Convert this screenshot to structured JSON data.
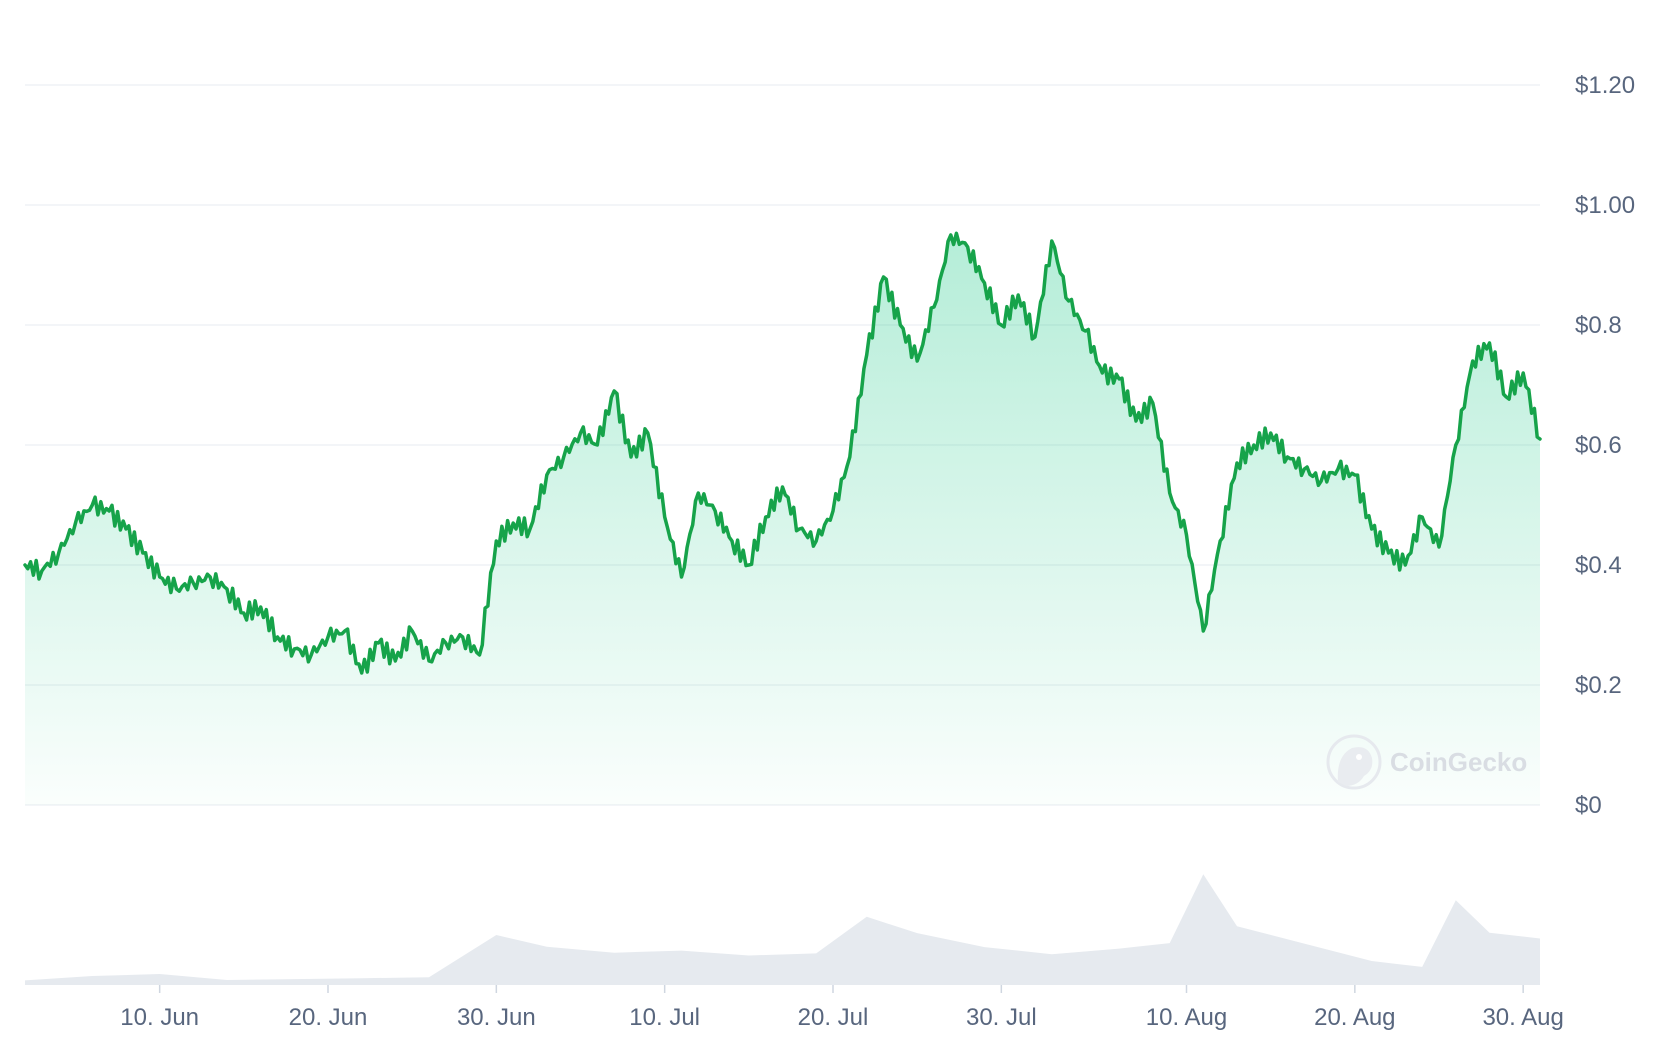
{
  "watermark": {
    "brand": "CoinGecko",
    "icon": "gecko-logo-icon"
  },
  "colors": {
    "line": "#16a34a",
    "area_top": "#16c784",
    "grid": "#eff2f5",
    "volume": "#e6eaef",
    "tick_text": "#58667e"
  },
  "chart_data": {
    "type": "area",
    "title": "",
    "xlabel": "",
    "ylabel": "",
    "y_ticks": [
      "$0",
      "$0.2",
      "$0.4",
      "$0.6",
      "$0.8",
      "$1.00",
      "$1.20"
    ],
    "y_tick_values": [
      0,
      0.2,
      0.4,
      0.6,
      0.8,
      1.0,
      1.2
    ],
    "ylim": [
      0,
      1.2
    ],
    "x_ticks": [
      "10. Jun",
      "20. Jun",
      "30. Jun",
      "10. Jul",
      "20. Jul",
      "30. Jul",
      "10. Aug",
      "20. Aug",
      "30. Aug"
    ],
    "x_tick_dates": [
      "2024-06-10",
      "2024-06-20",
      "2024-06-30",
      "2024-07-10",
      "2024-07-20",
      "2024-07-30",
      "2024-08-10",
      "2024-08-20",
      "2024-08-30"
    ],
    "xlim": [
      "2024-06-02",
      "2024-08-31"
    ],
    "grid": true,
    "legend": "none",
    "series": [
      {
        "values_by_date": [
          [
            "2024-06-02",
            0.4
          ],
          [
            "2024-06-03",
            0.39
          ],
          [
            "2024-06-04",
            0.42
          ],
          [
            "2024-06-05",
            0.47
          ],
          [
            "2024-06-06",
            0.5
          ],
          [
            "2024-06-07",
            0.49
          ],
          [
            "2024-06-08",
            0.46
          ],
          [
            "2024-06-09",
            0.42
          ],
          [
            "2024-06-10",
            0.38
          ],
          [
            "2024-06-11",
            0.36
          ],
          [
            "2024-06-12",
            0.37
          ],
          [
            "2024-06-13",
            0.38
          ],
          [
            "2024-06-14",
            0.36
          ],
          [
            "2024-06-15",
            0.32
          ],
          [
            "2024-06-16",
            0.33
          ],
          [
            "2024-06-17",
            0.28
          ],
          [
            "2024-06-18",
            0.26
          ],
          [
            "2024-06-19",
            0.25
          ],
          [
            "2024-06-20",
            0.28
          ],
          [
            "2024-06-21",
            0.29
          ],
          [
            "2024-06-22",
            0.22
          ],
          [
            "2024-06-23",
            0.27
          ],
          [
            "2024-06-24",
            0.24
          ],
          [
            "2024-06-25",
            0.29
          ],
          [
            "2024-06-26",
            0.24
          ],
          [
            "2024-06-27",
            0.27
          ],
          [
            "2024-06-28",
            0.28
          ],
          [
            "2024-06-29",
            0.25
          ],
          [
            "2024-06-30",
            0.44
          ],
          [
            "2024-07-01",
            0.47
          ],
          [
            "2024-07-02",
            0.46
          ],
          [
            "2024-07-03",
            0.55
          ],
          [
            "2024-07-04",
            0.58
          ],
          [
            "2024-07-05",
            0.62
          ],
          [
            "2024-07-06",
            0.6
          ],
          [
            "2024-07-07",
            0.69
          ],
          [
            "2024-07-08",
            0.58
          ],
          [
            "2024-07-09",
            0.62
          ],
          [
            "2024-07-10",
            0.48
          ],
          [
            "2024-07-11",
            0.38
          ],
          [
            "2024-07-12",
            0.52
          ],
          [
            "2024-07-13",
            0.49
          ],
          [
            "2024-07-14",
            0.44
          ],
          [
            "2024-07-15",
            0.4
          ],
          [
            "2024-07-16",
            0.48
          ],
          [
            "2024-07-17",
            0.53
          ],
          [
            "2024-07-18",
            0.46
          ],
          [
            "2024-07-19",
            0.44
          ],
          [
            "2024-07-20",
            0.49
          ],
          [
            "2024-07-21",
            0.58
          ],
          [
            "2024-07-22",
            0.75
          ],
          [
            "2024-07-23",
            0.88
          ],
          [
            "2024-07-24",
            0.8
          ],
          [
            "2024-07-25",
            0.74
          ],
          [
            "2024-07-26",
            0.83
          ],
          [
            "2024-07-27",
            0.95
          ],
          [
            "2024-07-28",
            0.93
          ],
          [
            "2024-07-29",
            0.87
          ],
          [
            "2024-07-30",
            0.8
          ],
          [
            "2024-07-31",
            0.85
          ],
          [
            "2024-08-01",
            0.78
          ],
          [
            "2024-08-02",
            0.94
          ],
          [
            "2024-08-03",
            0.84
          ],
          [
            "2024-08-04",
            0.79
          ],
          [
            "2024-08-05",
            0.72
          ],
          [
            "2024-08-06",
            0.71
          ],
          [
            "2024-08-07",
            0.64
          ],
          [
            "2024-08-08",
            0.67
          ],
          [
            "2024-08-09",
            0.52
          ],
          [
            "2024-08-10",
            0.45
          ],
          [
            "2024-08-11",
            0.29
          ],
          [
            "2024-08-12",
            0.44
          ],
          [
            "2024-08-13",
            0.57
          ],
          [
            "2024-08-14",
            0.6
          ],
          [
            "2024-08-15",
            0.62
          ],
          [
            "2024-08-16",
            0.58
          ],
          [
            "2024-08-17",
            0.56
          ],
          [
            "2024-08-18",
            0.54
          ],
          [
            "2024-08-19",
            0.56
          ],
          [
            "2024-08-20",
            0.55
          ],
          [
            "2024-08-21",
            0.46
          ],
          [
            "2024-08-22",
            0.42
          ],
          [
            "2024-08-23",
            0.4
          ],
          [
            "2024-08-24",
            0.48
          ],
          [
            "2024-08-25",
            0.43
          ],
          [
            "2024-08-26",
            0.6
          ],
          [
            "2024-08-27",
            0.74
          ],
          [
            "2024-08-28",
            0.77
          ],
          [
            "2024-08-29",
            0.68
          ],
          [
            "2024-08-30",
            0.72
          ],
          [
            "2024-08-31",
            0.61
          ]
        ]
      }
    ],
    "volume": {
      "has_axis": false,
      "values_by_date": [
        [
          "2024-06-02",
          0.04
        ],
        [
          "2024-06-06",
          0.08
        ],
        [
          "2024-06-10",
          0.1
        ],
        [
          "2024-06-14",
          0.05
        ],
        [
          "2024-06-18",
          0.06
        ],
        [
          "2024-06-22",
          0.07
        ],
        [
          "2024-06-26",
          0.08
        ],
        [
          "2024-06-30",
          0.45
        ],
        [
          "2024-07-03",
          0.35
        ],
        [
          "2024-07-07",
          0.3
        ],
        [
          "2024-07-11",
          0.32
        ],
        [
          "2024-07-15",
          0.28
        ],
        [
          "2024-07-19",
          0.3
        ],
        [
          "2024-07-22",
          0.62
        ],
        [
          "2024-07-25",
          0.48
        ],
        [
          "2024-07-29",
          0.36
        ],
        [
          "2024-08-02",
          0.3
        ],
        [
          "2024-08-06",
          0.35
        ],
        [
          "2024-08-09",
          0.4
        ],
        [
          "2024-08-11",
          1.0
        ],
        [
          "2024-08-13",
          0.55
        ],
        [
          "2024-08-17",
          0.4
        ],
        [
          "2024-08-21",
          0.25
        ],
        [
          "2024-08-24",
          0.2
        ],
        [
          "2024-08-26",
          0.78
        ],
        [
          "2024-08-28",
          0.5
        ],
        [
          "2024-08-31",
          0.45
        ]
      ]
    }
  }
}
